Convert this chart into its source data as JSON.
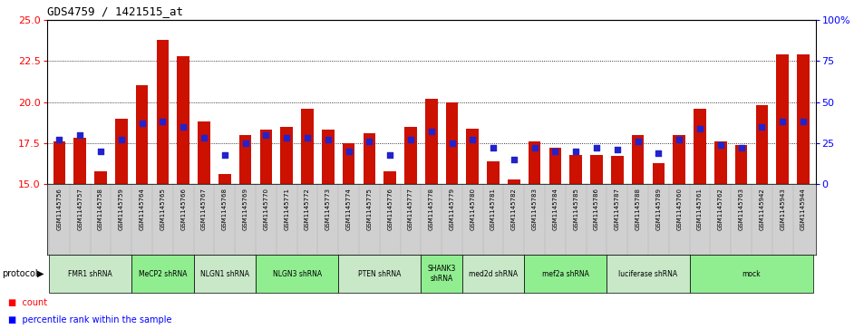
{
  "title": "GDS4759 / 1421515_at",
  "samples": [
    "GSM1145756",
    "GSM1145757",
    "GSM1145758",
    "GSM1145759",
    "GSM1145764",
    "GSM1145765",
    "GSM1145766",
    "GSM1145767",
    "GSM1145768",
    "GSM1145769",
    "GSM1145770",
    "GSM1145771",
    "GSM1145772",
    "GSM1145773",
    "GSM1145774",
    "GSM1145775",
    "GSM1145776",
    "GSM1145777",
    "GSM1145778",
    "GSM1145779",
    "GSM1145780",
    "GSM1145781",
    "GSM1145782",
    "GSM1145783",
    "GSM1145784",
    "GSM1145785",
    "GSM1145786",
    "GSM1145787",
    "GSM1145788",
    "GSM1145789",
    "GSM1145760",
    "GSM1145761",
    "GSM1145762",
    "GSM1145763",
    "GSM1145942",
    "GSM1145943",
    "GSM1145944"
  ],
  "counts": [
    17.6,
    17.8,
    15.8,
    19.0,
    21.0,
    23.8,
    22.8,
    18.8,
    15.6,
    18.0,
    18.3,
    18.5,
    19.6,
    18.3,
    17.5,
    18.1,
    15.8,
    18.5,
    20.2,
    20.0,
    18.4,
    16.4,
    15.3,
    17.6,
    17.2,
    16.8,
    16.8,
    16.7,
    18.0,
    16.3,
    18.0,
    19.6,
    17.6,
    17.4,
    19.8,
    22.9,
    22.9
  ],
  "percentiles": [
    27,
    30,
    20,
    27,
    37,
    38,
    35,
    28,
    18,
    25,
    30,
    28,
    28,
    27,
    20,
    26,
    18,
    27,
    32,
    25,
    27,
    22,
    15,
    22,
    20,
    20,
    22,
    21,
    26,
    19,
    27,
    34,
    24,
    22,
    35,
    38,
    38
  ],
  "groups": [
    {
      "label": "FMR1 shRNA",
      "start": 0,
      "end": 4,
      "color": "#c8e8c8"
    },
    {
      "label": "MeCP2 shRNA",
      "start": 4,
      "end": 7,
      "color": "#90ee90"
    },
    {
      "label": "NLGN1 shRNA",
      "start": 7,
      "end": 10,
      "color": "#c8e8c8"
    },
    {
      "label": "NLGN3 shRNA",
      "start": 10,
      "end": 14,
      "color": "#90ee90"
    },
    {
      "label": "PTEN shRNA",
      "start": 14,
      "end": 18,
      "color": "#c8e8c8"
    },
    {
      "label": "SHANK3\nshRNA",
      "start": 18,
      "end": 20,
      "color": "#90ee90"
    },
    {
      "label": "med2d shRNA",
      "start": 20,
      "end": 23,
      "color": "#c8e8c8"
    },
    {
      "label": "mef2a shRNA",
      "start": 23,
      "end": 27,
      "color": "#90ee90"
    },
    {
      "label": "luciferase shRNA",
      "start": 27,
      "end": 31,
      "color": "#c8e8c8"
    },
    {
      "label": "mock",
      "start": 31,
      "end": 37,
      "color": "#90ee90"
    }
  ],
  "ylim_left": [
    15,
    25
  ],
  "yticks_left": [
    15,
    17.5,
    20,
    22.5,
    25
  ],
  "ylim_right": [
    0,
    100
  ],
  "yticks_right": [
    0,
    25,
    50,
    75,
    100
  ],
  "bar_color": "#cc1100",
  "dot_color": "#2222cc",
  "bg_color": "#ffffff",
  "tick_area_bg": "#d0d0d0"
}
